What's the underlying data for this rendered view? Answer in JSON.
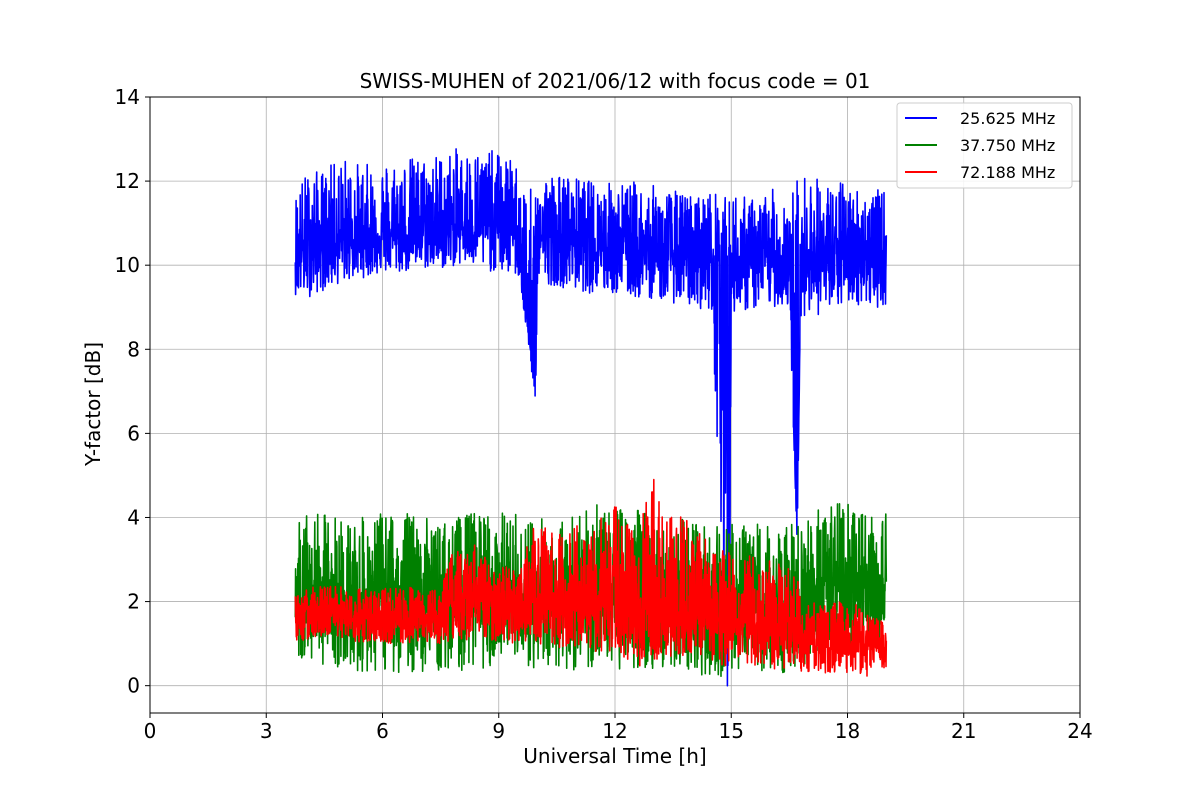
{
  "chart_data": {
    "type": "line",
    "title": "SWISS-MUHEN of 2021/06/12 with focus code = 01",
    "xlabel": "Universal Time [h]",
    "ylabel": "Y-factor [dB]",
    "xlim": [
      0,
      24
    ],
    "ylim": [
      -0.65,
      14
    ],
    "xticks": [
      0,
      3,
      6,
      9,
      12,
      15,
      18,
      21,
      24
    ],
    "yticks": [
      0,
      2,
      4,
      6,
      8,
      10,
      12,
      14
    ],
    "grid": true,
    "legend_position": "top-right",
    "series": [
      {
        "name": "25.625 MHz",
        "color": "#0000ff",
        "x": [
          3.75,
          4.0,
          4.5,
          5.0,
          5.5,
          6.0,
          6.5,
          7.0,
          7.5,
          8.0,
          8.5,
          9.0,
          9.5,
          9.95,
          10.0,
          10.5,
          11.0,
          11.5,
          12.0,
          12.5,
          13.0,
          13.5,
          14.0,
          14.5,
          14.9,
          14.95,
          15.0,
          15.5,
          16.0,
          16.5,
          16.7,
          16.8,
          17.0,
          17.5,
          18.0,
          18.5,
          19.0
        ],
        "y": [
          10.2,
          10.4,
          10.5,
          10.6,
          10.6,
          10.7,
          10.7,
          10.8,
          10.8,
          10.9,
          10.9,
          11.0,
          10.9,
          6.8,
          10.7,
          10.6,
          10.5,
          10.5,
          10.4,
          10.3,
          10.3,
          10.2,
          10.2,
          10.1,
          10.0,
          0.0,
          10.0,
          10.0,
          10.1,
          10.0,
          3.4,
          10.0,
          10.3,
          10.0,
          10.2,
          10.2,
          10.1
        ],
        "upper": [
          11.8,
          12.2,
          12.3,
          12.6,
          12.4,
          12.5,
          12.6,
          12.6,
          12.7,
          12.8,
          12.8,
          12.7,
          12.4,
          11.6,
          12.3,
          12.2,
          12.1,
          12.0,
          12.0,
          12.0,
          11.9,
          11.8,
          11.7,
          11.8,
          11.6,
          11.5,
          11.8,
          11.6,
          11.8,
          11.9,
          12.0,
          12.2,
          12.2,
          12.0,
          12.0,
          11.8,
          11.8
        ],
        "lower": [
          9.3,
          9.2,
          9.4,
          9.6,
          9.7,
          9.8,
          9.8,
          9.9,
          9.9,
          10.0,
          9.9,
          9.8,
          9.7,
          6.8,
          9.6,
          9.5,
          9.4,
          9.3,
          9.3,
          9.2,
          9.2,
          9.1,
          9.0,
          8.9,
          0.0,
          0.0,
          8.9,
          8.9,
          9.0,
          9.0,
          3.4,
          8.8,
          8.8,
          8.8,
          9.1,
          9.0,
          9.0
        ]
      },
      {
        "name": "37.750 MHz",
        "color": "#008000",
        "x": [
          3.75,
          4.5,
          5.5,
          6.5,
          7.5,
          8.5,
          9.5,
          10.5,
          11.5,
          12.5,
          13.5,
          14.5,
          15.5,
          16.5,
          17.5,
          18.5,
          19.0
        ],
        "y": [
          2.0,
          2.1,
          2.0,
          2.2,
          2.0,
          2.0,
          2.0,
          2.0,
          2.1,
          2.0,
          1.9,
          1.8,
          1.8,
          1.8,
          2.4,
          2.4,
          2.3
        ],
        "upper": [
          4.0,
          4.1,
          4.0,
          4.2,
          3.9,
          4.2,
          4.1,
          4.0,
          4.3,
          4.3,
          4.0,
          3.8,
          3.9,
          3.8,
          4.4,
          4.3,
          4.2
        ],
        "lower": [
          0.6,
          0.5,
          0.3,
          0.3,
          0.3,
          0.4,
          0.4,
          0.4,
          0.3,
          0.4,
          0.4,
          0.2,
          0.3,
          0.3,
          0.8,
          0.7,
          0.6
        ]
      },
      {
        "name": "72.188 MHz",
        "color": "#ff0000",
        "x": [
          3.75,
          4.5,
          5.5,
          6.5,
          7.5,
          7.8,
          8.5,
          9.0,
          9.5,
          10.0,
          10.5,
          11.0,
          11.5,
          12.0,
          12.5,
          13.0,
          13.5,
          14.0,
          14.5,
          15.0,
          15.5,
          16.0,
          16.5,
          17.0,
          17.5,
          18.0,
          18.5,
          19.0
        ],
        "y": [
          1.5,
          1.6,
          1.6,
          1.6,
          1.6,
          2.0,
          2.1,
          1.8,
          1.8,
          2.1,
          2.0,
          1.9,
          2.0,
          1.9,
          1.7,
          1.9,
          1.8,
          1.7,
          1.6,
          1.6,
          1.5,
          1.5,
          1.5,
          1.0,
          1.0,
          1.0,
          0.9,
          0.9
        ],
        "upper": [
          2.3,
          2.4,
          2.3,
          2.4,
          2.3,
          3.2,
          3.4,
          2.9,
          2.8,
          4.1,
          3.7,
          3.8,
          3.9,
          4.3,
          3.6,
          4.9,
          4.3,
          3.9,
          3.3,
          3.3,
          3.1,
          3.0,
          2.8,
          2.1,
          1.9,
          2.1,
          1.7,
          1.5
        ],
        "lower": [
          1.0,
          1.1,
          1.0,
          1.0,
          1.0,
          1.0,
          1.1,
          1.0,
          0.9,
          1.0,
          0.9,
          0.9,
          0.8,
          0.8,
          0.4,
          0.6,
          0.6,
          0.6,
          0.6,
          0.4,
          0.5,
          0.4,
          0.4,
          0.3,
          0.3,
          0.3,
          0.2,
          0.4
        ]
      }
    ]
  }
}
